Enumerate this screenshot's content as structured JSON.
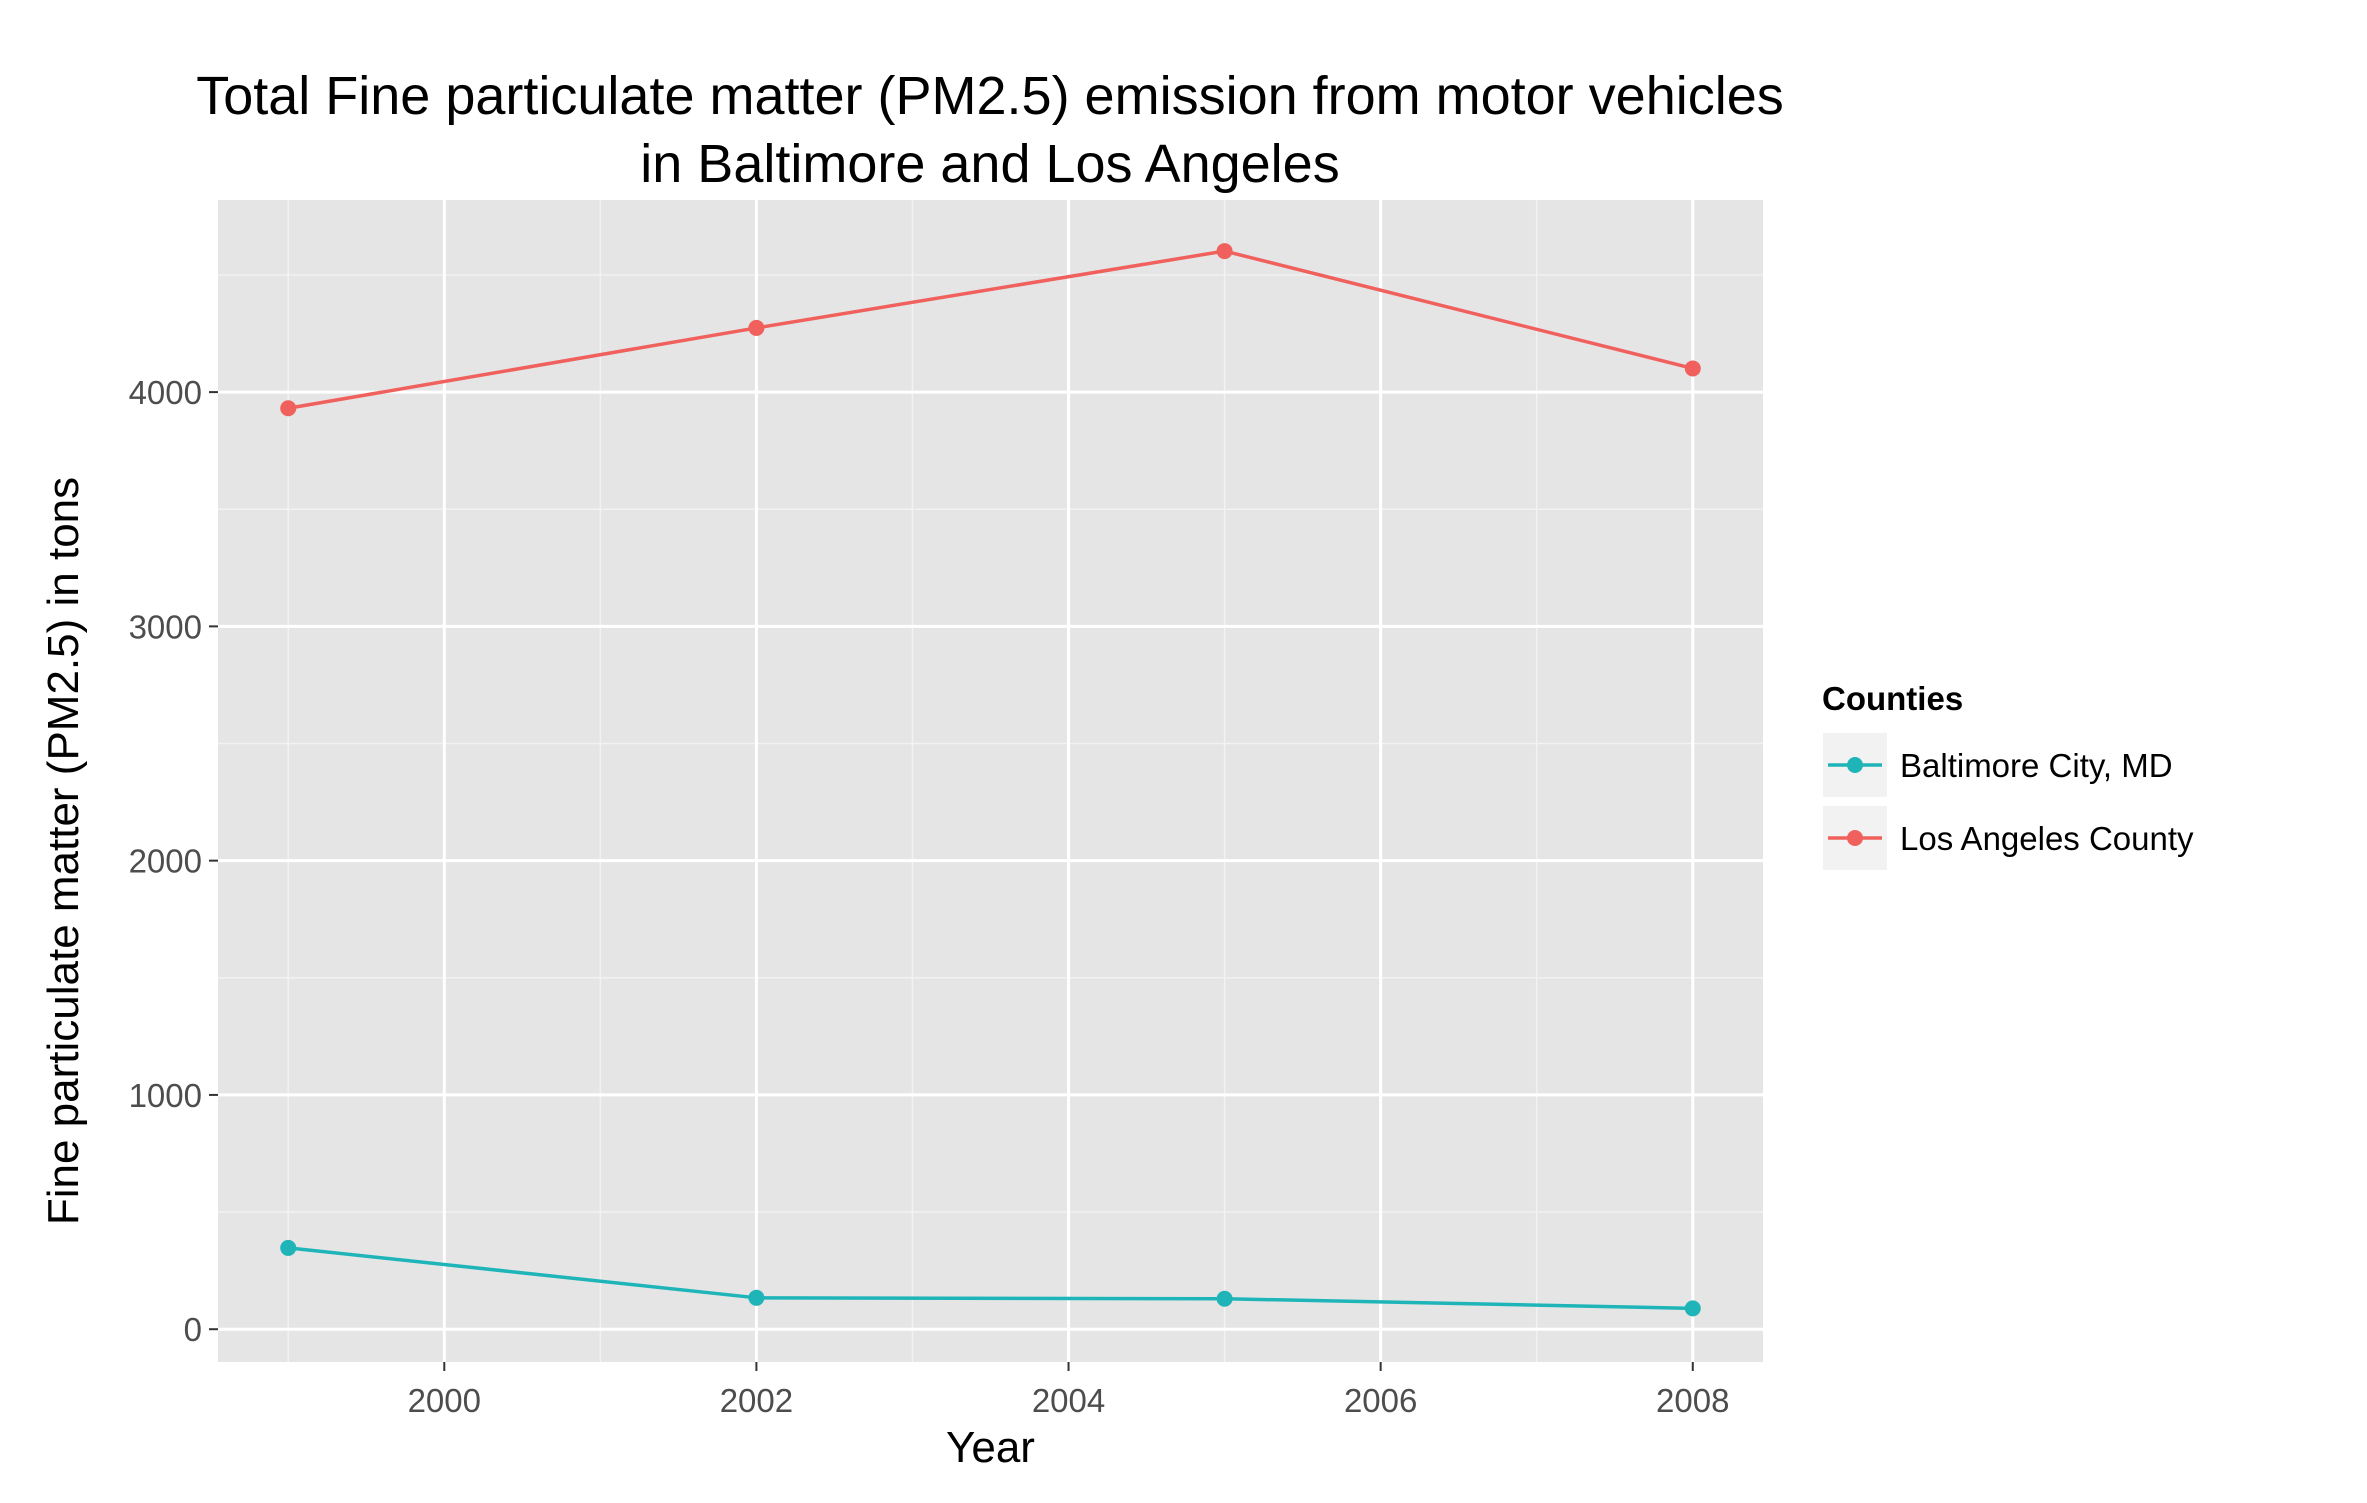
{
  "chart_data": {
    "type": "line",
    "title_lines": [
      "Total Fine particulate matter (PM2.5) emission from motor vehicles",
      "in Baltimore and Los Angeles"
    ],
    "xlabel": "Year",
    "ylabel": "Fine particulate matter (PM2.5) in tons",
    "x": [
      1999,
      2002,
      2005,
      2008
    ],
    "xlim": [
      1998.55,
      2008.45
    ],
    "ylim": [
      -140,
      4820
    ],
    "x_ticks": [
      2000,
      2002,
      2004,
      2006,
      2008
    ],
    "y_ticks": [
      0,
      1000,
      2000,
      3000,
      4000
    ],
    "x_tick_labels": [
      "2000",
      "2002",
      "2004",
      "2006",
      "2008"
    ],
    "y_tick_labels": [
      "0",
      "1000",
      "2000",
      "3000",
      "4000"
    ],
    "grid": true,
    "legend_title": "Counties",
    "legend_position": "right",
    "series": [
      {
        "name": "Baltimore City, MD",
        "color": "#1fb5b8",
        "values": [
          347,
          134,
          130,
          89
        ]
      },
      {
        "name": "Los Angeles County",
        "color": "#f0615d",
        "values": [
          3931,
          4274,
          4602,
          4101
        ]
      }
    ]
  }
}
